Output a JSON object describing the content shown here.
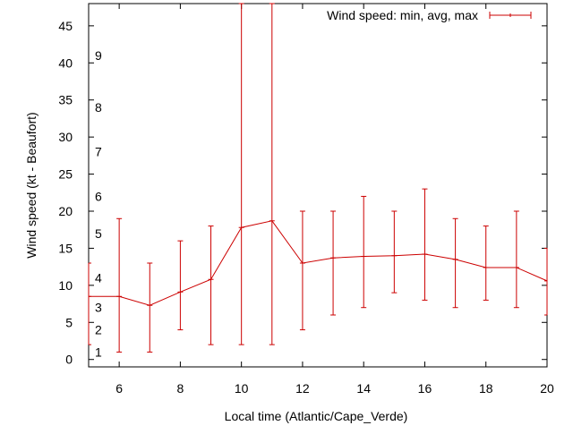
{
  "chart_data": {
    "type": "line",
    "xlabel": "Local time (Atlantic/Cape_Verde)",
    "ylabel": "Wind speed (kt - Beaufort)",
    "xlim": [
      5,
      20
    ],
    "ylim": [
      -1,
      48
    ],
    "x_ticks": [
      "6",
      "8",
      "10",
      "12",
      "14",
      "16",
      "18",
      "20"
    ],
    "y_ticks": [
      "0",
      "5",
      "10",
      "15",
      "20",
      "25",
      "30",
      "35",
      "40",
      "45"
    ],
    "beaufort_labels": [
      {
        "label": "1",
        "kt": 1
      },
      {
        "label": "2",
        "kt": 4
      },
      {
        "label": "3",
        "kt": 7
      },
      {
        "label": "4",
        "kt": 11
      },
      {
        "label": "5",
        "kt": 17
      },
      {
        "label": "6",
        "kt": 22
      },
      {
        "label": "7",
        "kt": 28
      },
      {
        "label": "8",
        "kt": 34
      },
      {
        "label": "9",
        "kt": 41
      }
    ],
    "legend_position": "top-right",
    "grid": false,
    "color": "#cc0000",
    "series": [
      {
        "name": "Wind speed: min, avg, max",
        "x": [
          5,
          6,
          7,
          8,
          9,
          10,
          11,
          12,
          13,
          14,
          15,
          16,
          17,
          18,
          19,
          20
        ],
        "avg": [
          8.5,
          8.5,
          7.3,
          9.1,
          10.8,
          17.8,
          18.7,
          13.0,
          13.7,
          13.9,
          14.0,
          14.2,
          13.5,
          12.4,
          12.4,
          10.6
        ],
        "min": [
          2,
          1,
          1,
          4,
          2,
          2,
          2,
          4,
          6,
          7,
          9,
          8,
          7,
          8,
          7,
          6
        ],
        "max": [
          13,
          19,
          13,
          16,
          18,
          48,
          48,
          20,
          20,
          22,
          20,
          23,
          19,
          18,
          20,
          15
        ]
      }
    ]
  }
}
